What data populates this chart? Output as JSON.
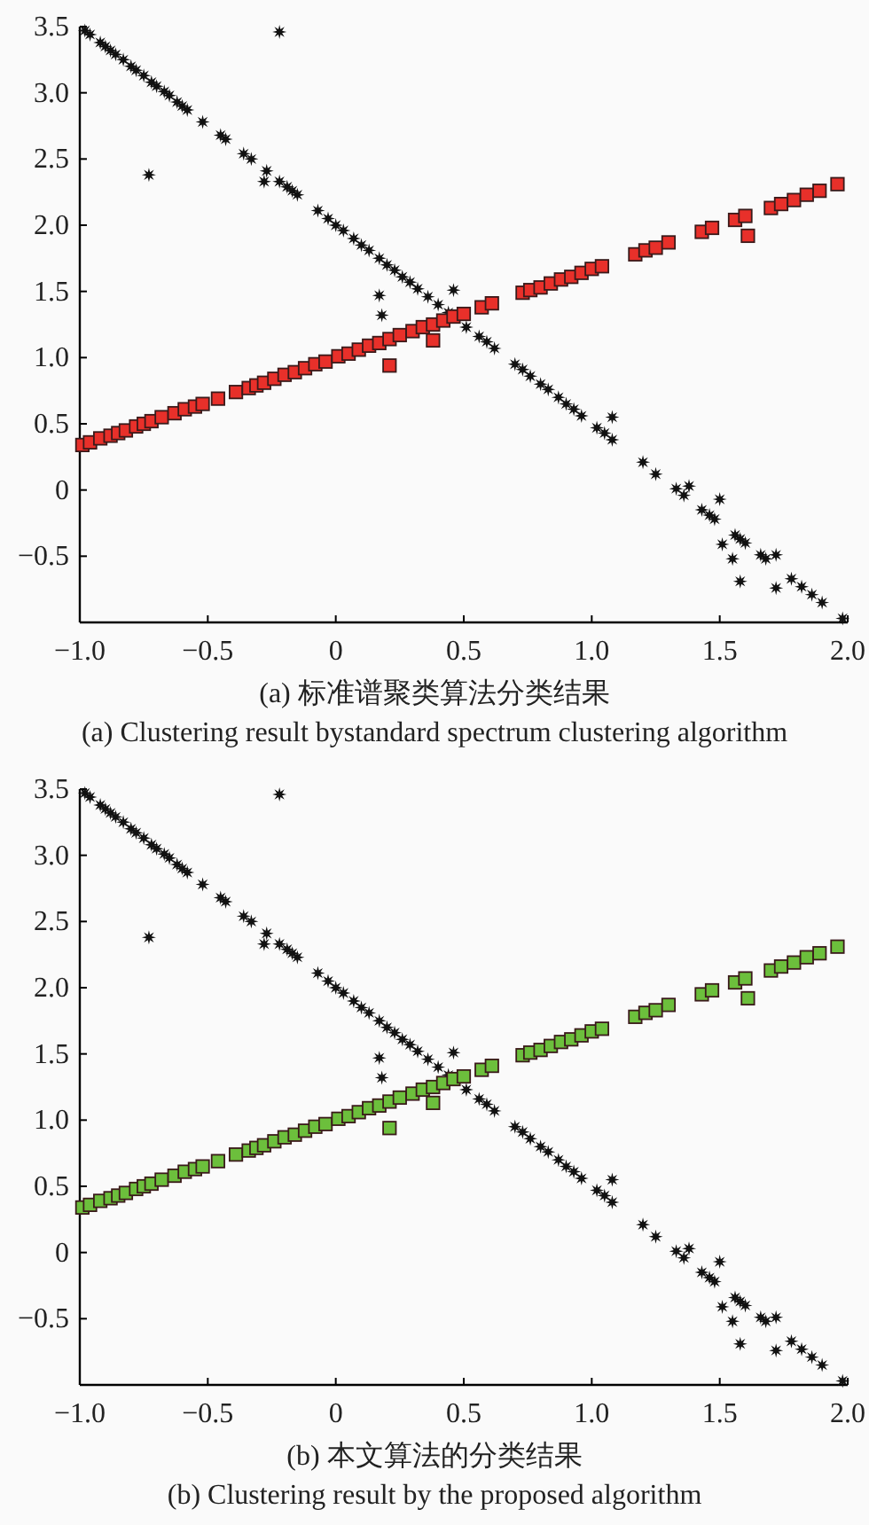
{
  "chart_data": [
    {
      "type": "scatter",
      "title": "(a) 标准谱聚类算法分类结果",
      "subtitle": "(a) Clustering result bystandard spectrum clustering algorithm",
      "xlim": [
        -1,
        2
      ],
      "ylim": [
        -1,
        3.5
      ],
      "xticks": [
        {
          "value": -1,
          "label": "−1.0"
        },
        {
          "value": -0.5,
          "label": "−0.5"
        },
        0,
        0.5,
        {
          "value": 1,
          "label": "1.0"
        },
        1.5,
        {
          "value": 2,
          "label": "2.0"
        }
      ],
      "yticks": [
        {
          "value": -0.5,
          "label": "−0.5"
        },
        0,
        0.5,
        {
          "value": 1,
          "label": "1.0"
        },
        1.5,
        {
          "value": 2,
          "label": "2.0"
        },
        2.5,
        {
          "value": 3,
          "label": "3.0"
        },
        3.5
      ],
      "grid": false,
      "series": [
        {
          "color": "#111111",
          "marker": "star",
          "x": [
            -0.98,
            -0.96,
            -0.92,
            -0.9,
            -0.88,
            -0.86,
            -0.83,
            -0.8,
            -0.78,
            -0.75,
            -0.72,
            -0.7,
            -0.67,
            -0.65,
            -0.62,
            -0.6,
            -0.58,
            -0.52,
            -0.45,
            -0.43,
            -0.36,
            -0.33,
            -0.27,
            -0.28,
            -0.22,
            -0.19,
            -0.17,
            -0.15,
            -0.07,
            -0.03,
            0,
            0.03,
            0.07,
            0.1,
            0.13,
            0.17,
            0.2,
            0.23,
            0.26,
            0.29,
            0.32,
            0.36,
            0.4,
            0.44,
            0.51,
            0.56,
            0.59,
            0.62,
            0.7,
            0.73,
            0.76,
            0.8,
            0.83,
            0.87,
            0.9,
            0.93,
            0.96,
            1.02,
            1.05,
            1.08,
            1.2,
            1.25,
            1.33,
            1.36,
            1.43,
            1.46,
            1.48,
            1.56,
            1.58,
            1.6,
            1.66,
            1.68,
            1.78,
            1.82,
            1.86,
            1.9,
            1.98,
            -0.22,
            -0.73,
            0.17,
            0.18,
            0.46,
            1.08,
            1.38,
            1.5,
            1.51,
            1.55,
            1.58,
            1.72,
            1.72
          ],
          "values": [
            3.47,
            3.44,
            3.38,
            3.35,
            3.32,
            3.29,
            3.25,
            3.2,
            3.17,
            3.13,
            3.08,
            3.05,
            3.01,
            2.98,
            2.93,
            2.9,
            2.87,
            2.78,
            2.68,
            2.65,
            2.54,
            2.5,
            2.41,
            2.33,
            2.33,
            2.29,
            2.26,
            2.23,
            2.11,
            2.05,
            2.0,
            1.96,
            1.9,
            1.85,
            1.81,
            1.75,
            1.7,
            1.66,
            1.61,
            1.57,
            1.52,
            1.46,
            1.4,
            1.34,
            1.23,
            1.16,
            1.12,
            1.07,
            0.95,
            0.91,
            0.86,
            0.8,
            0.76,
            0.7,
            0.65,
            0.61,
            0.56,
            0.47,
            0.43,
            0.38,
            0.21,
            0.12,
            0.01,
            -0.04,
            -0.15,
            -0.19,
            -0.22,
            -0.34,
            -0.37,
            -0.4,
            -0.49,
            -0.52,
            -0.67,
            -0.73,
            -0.79,
            -0.85,
            -0.97,
            3.46,
            2.38,
            1.47,
            1.32,
            1.51,
            0.55,
            0.03,
            -0.07,
            -0.41,
            -0.52,
            -0.69,
            -0.49,
            -0.74
          ]
        },
        {
          "color": "#e8302a",
          "marker": "square",
          "x": [
            -0.99,
            -0.96,
            -0.92,
            -0.88,
            -0.85,
            -0.82,
            -0.78,
            -0.75,
            -0.72,
            -0.68,
            -0.63,
            -0.59,
            -0.55,
            -0.52,
            -0.46,
            -0.39,
            -0.34,
            -0.31,
            -0.28,
            -0.24,
            -0.2,
            -0.16,
            -0.12,
            -0.08,
            -0.04,
            0.01,
            0.05,
            0.09,
            0.13,
            0.17,
            0.21,
            0.25,
            0.3,
            0.34,
            0.38,
            0.42,
            0.46,
            0.5,
            0.57,
            0.61,
            0.73,
            0.76,
            0.8,
            0.84,
            0.88,
            0.92,
            0.96,
            1.0,
            1.04,
            1.17,
            1.21,
            1.25,
            1.3,
            1.43,
            1.47,
            1.56,
            1.6,
            1.7,
            1.74,
            1.79,
            1.84,
            1.89,
            1.96,
            0.21,
            0.38,
            1.61
          ],
          "values": [
            0.34,
            0.36,
            0.39,
            0.41,
            0.43,
            0.45,
            0.48,
            0.5,
            0.52,
            0.55,
            0.58,
            0.61,
            0.63,
            0.65,
            0.69,
            0.74,
            0.77,
            0.79,
            0.81,
            0.84,
            0.87,
            0.89,
            0.92,
            0.95,
            0.97,
            1.01,
            1.03,
            1.06,
            1.09,
            1.11,
            1.14,
            1.17,
            1.2,
            1.23,
            1.25,
            1.28,
            1.31,
            1.33,
            1.38,
            1.41,
            1.49,
            1.51,
            1.53,
            1.56,
            1.59,
            1.61,
            1.64,
            1.67,
            1.69,
            1.78,
            1.81,
            1.83,
            1.87,
            1.95,
            1.98,
            2.04,
            2.07,
            2.13,
            2.16,
            2.19,
            2.23,
            2.26,
            2.31,
            0.94,
            1.13,
            1.92
          ]
        }
      ]
    },
    {
      "type": "scatter",
      "title": "(b) 本文算法的分类结果",
      "subtitle": "(b) Clustering result by the proposed algorithm",
      "xlim": [
        -1,
        2
      ],
      "ylim": [
        -1,
        3.5
      ],
      "xticks": [
        {
          "value": -1,
          "label": "−1.0"
        },
        {
          "value": -0.5,
          "label": "−0.5"
        },
        0,
        0.5,
        {
          "value": 1,
          "label": "1.0"
        },
        1.5,
        {
          "value": 2,
          "label": "2.0"
        }
      ],
      "yticks": [
        {
          "value": -0.5,
          "label": "−0.5"
        },
        0,
        0.5,
        {
          "value": 1,
          "label": "1.0"
        },
        1.5,
        {
          "value": 2,
          "label": "2.0"
        },
        2.5,
        {
          "value": 3,
          "label": "3.0"
        },
        3.5
      ],
      "grid": false,
      "series": [
        {
          "color": "#111111",
          "marker": "star",
          "x": [
            -0.98,
            -0.96,
            -0.92,
            -0.9,
            -0.88,
            -0.86,
            -0.83,
            -0.8,
            -0.78,
            -0.75,
            -0.72,
            -0.7,
            -0.67,
            -0.65,
            -0.62,
            -0.6,
            -0.58,
            -0.52,
            -0.45,
            -0.43,
            -0.36,
            -0.33,
            -0.27,
            -0.28,
            -0.22,
            -0.19,
            -0.17,
            -0.15,
            -0.07,
            -0.03,
            0,
            0.03,
            0.07,
            0.1,
            0.13,
            0.17,
            0.2,
            0.23,
            0.26,
            0.29,
            0.32,
            0.36,
            0.4,
            0.44,
            0.51,
            0.56,
            0.59,
            0.62,
            0.7,
            0.73,
            0.76,
            0.8,
            0.83,
            0.87,
            0.9,
            0.93,
            0.96,
            1.02,
            1.05,
            1.08,
            1.2,
            1.25,
            1.33,
            1.36,
            1.43,
            1.46,
            1.48,
            1.56,
            1.58,
            1.6,
            1.66,
            1.68,
            1.78,
            1.82,
            1.86,
            1.9,
            1.98,
            -0.22,
            -0.73,
            0.17,
            0.18,
            0.46,
            1.08,
            1.38,
            1.5,
            1.51,
            1.55,
            1.58,
            1.72,
            1.72
          ],
          "values": [
            3.47,
            3.44,
            3.38,
            3.35,
            3.32,
            3.29,
            3.25,
            3.2,
            3.17,
            3.13,
            3.08,
            3.05,
            3.01,
            2.98,
            2.93,
            2.9,
            2.87,
            2.78,
            2.68,
            2.65,
            2.54,
            2.5,
            2.41,
            2.33,
            2.33,
            2.29,
            2.26,
            2.23,
            2.11,
            2.05,
            2.0,
            1.96,
            1.9,
            1.85,
            1.81,
            1.75,
            1.7,
            1.66,
            1.61,
            1.57,
            1.52,
            1.46,
            1.4,
            1.34,
            1.23,
            1.16,
            1.12,
            1.07,
            0.95,
            0.91,
            0.86,
            0.8,
            0.76,
            0.7,
            0.65,
            0.61,
            0.56,
            0.47,
            0.43,
            0.38,
            0.21,
            0.12,
            0.01,
            -0.04,
            -0.15,
            -0.19,
            -0.22,
            -0.34,
            -0.37,
            -0.4,
            -0.49,
            -0.52,
            -0.67,
            -0.73,
            -0.79,
            -0.85,
            -0.97,
            3.46,
            2.38,
            1.47,
            1.32,
            1.51,
            0.55,
            0.03,
            -0.07,
            -0.41,
            -0.52,
            -0.69,
            -0.49,
            -0.74
          ]
        },
        {
          "color": "#6cbf3c",
          "marker": "square",
          "x": [
            -0.99,
            -0.96,
            -0.92,
            -0.88,
            -0.85,
            -0.82,
            -0.78,
            -0.75,
            -0.72,
            -0.68,
            -0.63,
            -0.59,
            -0.55,
            -0.52,
            -0.46,
            -0.39,
            -0.34,
            -0.31,
            -0.28,
            -0.24,
            -0.2,
            -0.16,
            -0.12,
            -0.08,
            -0.04,
            0.01,
            0.05,
            0.09,
            0.13,
            0.17,
            0.21,
            0.25,
            0.3,
            0.34,
            0.38,
            0.42,
            0.46,
            0.5,
            0.57,
            0.61,
            0.73,
            0.76,
            0.8,
            0.84,
            0.88,
            0.92,
            0.96,
            1.0,
            1.04,
            1.17,
            1.21,
            1.25,
            1.3,
            1.43,
            1.47,
            1.56,
            1.6,
            1.7,
            1.74,
            1.79,
            1.84,
            1.89,
            1.96,
            0.21,
            0.38,
            1.61
          ],
          "values": [
            0.34,
            0.36,
            0.39,
            0.41,
            0.43,
            0.45,
            0.48,
            0.5,
            0.52,
            0.55,
            0.58,
            0.61,
            0.63,
            0.65,
            0.69,
            0.74,
            0.77,
            0.79,
            0.81,
            0.84,
            0.87,
            0.89,
            0.92,
            0.95,
            0.97,
            1.01,
            1.03,
            1.06,
            1.09,
            1.11,
            1.14,
            1.17,
            1.2,
            1.23,
            1.25,
            1.28,
            1.31,
            1.33,
            1.38,
            1.41,
            1.49,
            1.51,
            1.53,
            1.56,
            1.59,
            1.61,
            1.64,
            1.67,
            1.69,
            1.78,
            1.81,
            1.83,
            1.87,
            1.95,
            1.98,
            2.04,
            2.07,
            2.13,
            2.16,
            2.19,
            2.23,
            2.26,
            2.31,
            0.94,
            1.13,
            1.92
          ]
        }
      ]
    }
  ]
}
